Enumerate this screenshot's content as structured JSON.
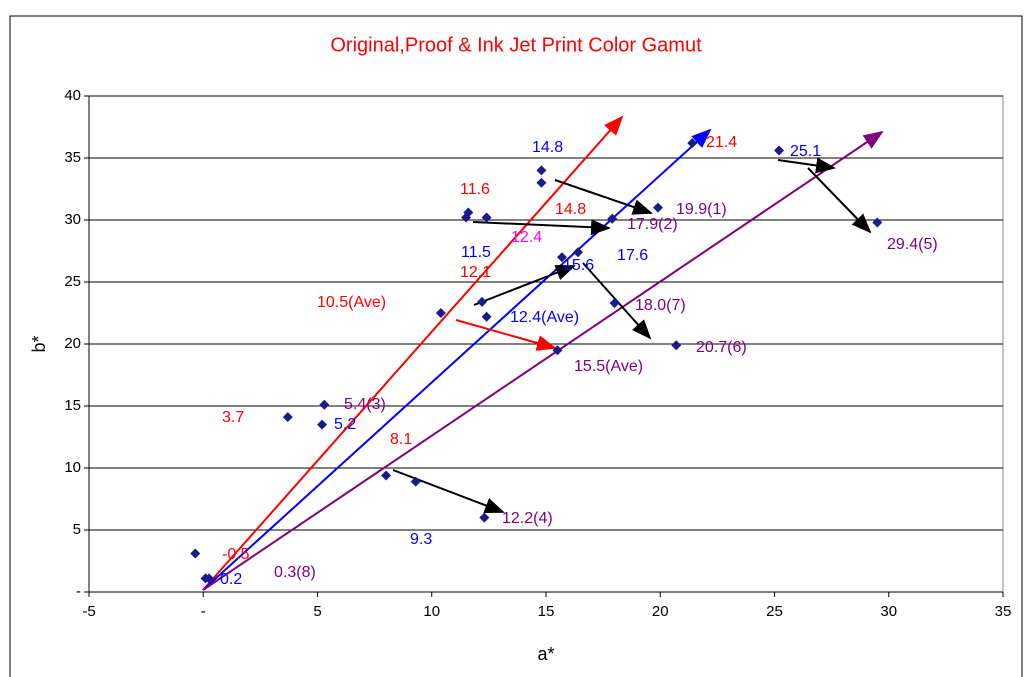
{
  "chart_data": {
    "type": "scatter",
    "title": "Original,Proof & Ink Jet Print Color Gamut",
    "title_color": "#ff0000",
    "x_label": "a*",
    "y_label": "b*",
    "xlim": [
      -5,
      35
    ],
    "ylim": [
      0,
      40
    ],
    "xticks": [
      -5,
      {
        "value": 0,
        "label": "-"
      },
      5,
      10,
      15,
      20,
      25,
      30,
      35
    ],
    "yticks": [
      {
        "value": 0,
        "label": "-"
      },
      5,
      10,
      15,
      20,
      25,
      30,
      35,
      40
    ],
    "grid": true,
    "series": [
      {
        "color": "#1a1a8c",
        "x": [
          -0.35,
          0.1,
          0.25,
          3.7,
          5.3,
          5.2,
          10.4,
          11.5,
          11.6,
          12.4,
          12.2,
          12.4,
          14.8,
          14.8,
          15.5,
          15.7,
          16.4,
          18.0,
          17.9,
          19.9,
          20.7,
          21.4,
          25.2,
          29.5,
          8.0,
          9.3,
          12.3
        ],
        "values": [
          3.1,
          1.1,
          1.1,
          14.1,
          15.1,
          13.5,
          22.5,
          30.2,
          30.6,
          30.2,
          23.4,
          22.2,
          34.0,
          33.0,
          19.5,
          27.0,
          27.4,
          23.3,
          30.1,
          31.0,
          19.9,
          36.2,
          35.6,
          29.8,
          9.4,
          8.9,
          6.0
        ]
      }
    ],
    "annotations": [
      {
        "text": "14.8",
        "color": "#0000ff"
      },
      {
        "text": "21.4",
        "color": "#ff0000"
      },
      {
        "text": "25.1",
        "color": "#0000ff"
      },
      {
        "text": "11.6",
        "color": "#ff0000"
      },
      {
        "text": "14.8",
        "color": "#ff0000"
      },
      {
        "text": "19.9(1)",
        "color": "#800080"
      },
      {
        "text": "17.9(2)",
        "color": "#800080"
      },
      {
        "text": "12.4",
        "color": "#ff00ff"
      },
      {
        "text": "11.5",
        "color": "#0000ff"
      },
      {
        "text": "15.6",
        "color": "#0000ff"
      },
      {
        "text": "17.6",
        "color": "#0000ff"
      },
      {
        "text": "29.4(5)",
        "color": "#800080"
      },
      {
        "text": "12.1",
        "color": "#ff0000"
      },
      {
        "text": "10.5(Ave)",
        "color": "#ff0000"
      },
      {
        "text": "12.4(Ave)",
        "color": "#0000ff"
      },
      {
        "text": "18.0(7)",
        "color": "#800080"
      },
      {
        "text": "20.7(6)",
        "color": "#800080"
      },
      {
        "text": "15.5(Ave)",
        "color": "#800080"
      },
      {
        "text": "3.7",
        "color": "#ff0000"
      },
      {
        "text": "5.4(3)",
        "color": "#800080"
      },
      {
        "text": "5.2",
        "color": "#0000ff"
      },
      {
        "text": "8.1",
        "color": "#ff0000"
      },
      {
        "text": "9.3",
        "color": "#0000ff"
      },
      {
        "text": "12.2(4)",
        "color": "#800080"
      },
      {
        "text": "-0.5",
        "color": "#ff0000"
      },
      {
        "text": "0.2",
        "color": "#0000ff"
      },
      {
        "text": "0.3(8)",
        "color": "#800080"
      }
    ]
  }
}
